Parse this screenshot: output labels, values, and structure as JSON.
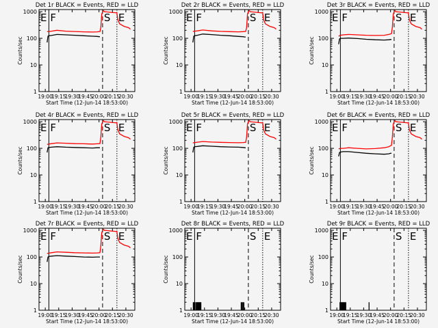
{
  "figure": {
    "xlabel": "Start Time (12-Jun-14 18:53:00)",
    "ylabel": "Counts/sec",
    "x_ticks": [
      "19:00",
      "19:15",
      "19:30",
      "19:45",
      "20:00",
      "20:15",
      "20:30"
    ],
    "x_tick_minutes": [
      7,
      22,
      37,
      52,
      67,
      82,
      97
    ],
    "y_ticks": [
      "1",
      "10",
      "100",
      "1000"
    ],
    "y_tick_values": [
      1,
      10,
      100,
      1000
    ],
    "xlim_minutes": [
      0,
      107
    ],
    "ylim": [
      1,
      1200
    ],
    "y_scale": "log",
    "markers": [
      {
        "label": "E",
        "minute": 0,
        "style": "solid"
      },
      {
        "label": "F",
        "minute": 11,
        "style": "solid"
      },
      {
        "label": "S",
        "minute": 71,
        "style": "dashed"
      },
      {
        "label": "E",
        "minute": 87,
        "style": "dotted"
      }
    ],
    "colors": {
      "events": "#000000",
      "lld": "#ff0000",
      "background": "#f4f4f4"
    }
  },
  "chart_data": [
    {
      "type": "line",
      "title": "Det 1r BLACK = Events, RED = LLD",
      "x_label": "Start Time (12-Jun-14 18:53:00)",
      "y_label": "Counts/sec",
      "series": [
        {
          "name": "Events",
          "color": "#000000",
          "x": [
            9,
            10,
            11,
            14,
            20,
            30,
            40,
            50,
            60,
            65,
            67,
            68
          ],
          "y": [
            70,
            120,
            125,
            128,
            140,
            135,
            130,
            125,
            120,
            118,
            115,
            115
          ]
        },
        {
          "name": "LLD",
          "color": "#ff0000",
          "x": [
            9,
            11,
            14,
            20,
            30,
            40,
            50,
            60,
            65,
            68,
            69,
            70,
            71,
            72,
            73,
            87,
            88,
            90,
            95,
            100,
            102
          ],
          "y": [
            180,
            180,
            185,
            200,
            185,
            180,
            175,
            172,
            175,
            180,
            250,
            800,
            1000,
            1100,
            1000,
            900,
            500,
            350,
            280,
            250,
            220
          ]
        }
      ]
    },
    {
      "type": "line",
      "title": "Det 2r BLACK = Events, RED = LLD",
      "x_label": "Start Time (12-Jun-14 18:53:00)",
      "y_label": "Counts/sec",
      "series": [
        {
          "name": "Events",
          "color": "#000000",
          "x": [
            9,
            10,
            11,
            14,
            20,
            30,
            40,
            50,
            60,
            65,
            67,
            68
          ],
          "y": [
            70,
            120,
            125,
            130,
            145,
            138,
            130,
            125,
            118,
            115,
            112,
            112
          ]
        },
        {
          "name": "LLD",
          "color": "#ff0000",
          "x": [
            9,
            11,
            14,
            20,
            30,
            40,
            50,
            60,
            65,
            68,
            69,
            70,
            71,
            72,
            73,
            87,
            88,
            90,
            95,
            100,
            102
          ],
          "y": [
            180,
            185,
            190,
            205,
            190,
            182,
            178,
            175,
            178,
            182,
            250,
            800,
            1000,
            1100,
            1000,
            900,
            500,
            350,
            280,
            250,
            220
          ]
        }
      ]
    },
    {
      "type": "line",
      "title": "Det 3r BLACK = Events, RED = LLD",
      "x_label": "Start Time (12-Jun-14 18:53:00)",
      "y_label": "Counts/sec",
      "series": [
        {
          "name": "Events",
          "color": "#000000",
          "x": [
            9,
            10,
            11,
            14,
            20,
            30,
            40,
            50,
            60,
            65,
            67,
            68
          ],
          "y": [
            60,
            95,
            100,
            100,
            102,
            98,
            92,
            88,
            86,
            88,
            90,
            90
          ]
        },
        {
          "name": "LLD",
          "color": "#ff0000",
          "x": [
            9,
            11,
            14,
            20,
            30,
            40,
            50,
            60,
            65,
            68,
            69,
            70,
            71,
            72,
            73,
            87,
            88,
            90,
            95,
            100,
            102
          ],
          "y": [
            120,
            130,
            135,
            140,
            135,
            130,
            128,
            130,
            140,
            150,
            260,
            800,
            1000,
            1100,
            1000,
            900,
            500,
            350,
            280,
            250,
            220
          ]
        }
      ]
    },
    {
      "type": "line",
      "title": "Det 4r BLACK = Events, RED = LLD",
      "x_label": "Start Time (12-Jun-14 18:53:00)",
      "y_label": "Counts/sec",
      "series": [
        {
          "name": "Events",
          "color": "#000000",
          "x": [
            9,
            10,
            11,
            14,
            20,
            30,
            40,
            50,
            60,
            65,
            67,
            68
          ],
          "y": [
            70,
            105,
            108,
            110,
            115,
            110,
            108,
            105,
            103,
            105,
            105,
            105
          ]
        },
        {
          "name": "LLD",
          "color": "#ff0000",
          "x": [
            9,
            11,
            14,
            20,
            30,
            40,
            50,
            60,
            65,
            68,
            69,
            70,
            71,
            72,
            73,
            87,
            88,
            90,
            95,
            100,
            102
          ],
          "y": [
            140,
            145,
            150,
            160,
            155,
            150,
            148,
            145,
            148,
            150,
            260,
            800,
            1000,
            1100,
            1000,
            900,
            500,
            350,
            280,
            250,
            220
          ]
        }
      ]
    },
    {
      "type": "line",
      "title": "Det 5r BLACK = Events, RED = LLD",
      "x_label": "Start Time (12-Jun-14 18:53:00)",
      "y_label": "Counts/sec",
      "series": [
        {
          "name": "Events",
          "color": "#000000",
          "x": [
            9,
            10,
            11,
            14,
            20,
            30,
            40,
            50,
            60,
            65,
            67,
            68
          ],
          "y": [
            70,
            110,
            115,
            118,
            125,
            120,
            115,
            112,
            110,
            108,
            105,
            105
          ]
        },
        {
          "name": "LLD",
          "color": "#ff0000",
          "x": [
            9,
            11,
            14,
            20,
            30,
            40,
            50,
            60,
            65,
            68,
            69,
            70,
            71,
            72,
            73,
            87,
            88,
            90,
            95,
            100,
            102
          ],
          "y": [
            160,
            165,
            170,
            180,
            172,
            168,
            165,
            162,
            165,
            168,
            260,
            800,
            1000,
            1100,
            1000,
            900,
            500,
            350,
            280,
            250,
            220
          ]
        }
      ]
    },
    {
      "type": "line",
      "title": "Det 6r BLACK = Events, RED = LLD",
      "x_label": "Start Time (12-Jun-14 18:53:00)",
      "y_label": "Counts/sec",
      "series": [
        {
          "name": "Events",
          "color": "#000000",
          "x": [
            9,
            10,
            11,
            14,
            20,
            30,
            40,
            50,
            60,
            65,
            67,
            68
          ],
          "y": [
            50,
            70,
            72,
            75,
            75,
            70,
            65,
            62,
            60,
            62,
            65,
            65
          ]
        },
        {
          "name": "LLD",
          "color": "#ff0000",
          "x": [
            9,
            11,
            14,
            20,
            30,
            40,
            50,
            60,
            65,
            68,
            69,
            70,
            71,
            72,
            73,
            87,
            88,
            90,
            95,
            100,
            102
          ],
          "y": [
            95,
            100,
            100,
            105,
            100,
            95,
            98,
            105,
            115,
            130,
            260,
            800,
            1000,
            1100,
            1000,
            900,
            500,
            350,
            280,
            250,
            220
          ]
        }
      ]
    },
    {
      "type": "line",
      "title": "Det 7r BLACK = Events, RED = LLD",
      "x_label": "Start Time (12-Jun-14 18:53:00)",
      "y_label": "Counts/sec",
      "series": [
        {
          "name": "Events",
          "color": "#000000",
          "x": [
            9,
            10,
            11,
            14,
            20,
            30,
            40,
            50,
            60,
            65,
            67,
            68
          ],
          "y": [
            65,
            100,
            105,
            108,
            112,
            108,
            104,
            100,
            98,
            100,
            100,
            100
          ]
        },
        {
          "name": "LLD",
          "color": "#ff0000",
          "x": [
            9,
            11,
            14,
            20,
            30,
            40,
            50,
            60,
            65,
            68,
            69,
            70,
            71,
            72,
            73,
            87,
            88,
            90,
            95,
            100,
            102
          ],
          "y": [
            135,
            140,
            145,
            155,
            150,
            145,
            142,
            140,
            142,
            145,
            260,
            800,
            1000,
            1100,
            1000,
            900,
            500,
            350,
            280,
            250,
            220
          ]
        }
      ]
    },
    {
      "type": "bar",
      "title": "Det 8r BLACK = Events, RED = LLD",
      "x_label": "Start Time (12-Jun-14 18:53:00)",
      "y_label": "Counts/sec",
      "series": [
        {
          "name": "Events",
          "color": "#000000",
          "x": [
            9.5,
            10.2,
            11.5,
            12.8,
            13.5,
            14.2,
            15.0,
            15.7,
            16.5,
            17.2,
            18.0,
            63.0,
            64.0,
            65.0,
            66.0
          ],
          "y": [
            2,
            2,
            2,
            2,
            2,
            2,
            2,
            2,
            2,
            2,
            2,
            2,
            2,
            2,
            2
          ]
        }
      ]
    },
    {
      "type": "bar",
      "title": "Det 9r BLACK = Events, RED = LLD",
      "x_label": "Start Time (12-Jun-14 18:53:00)",
      "y_label": "Counts/sec",
      "series": [
        {
          "name": "Events",
          "color": "#000000",
          "x": [
            10.5,
            11.3,
            12.2,
            13.0,
            13.8,
            14.6,
            15.4,
            16.2,
            17.0,
            43.0
          ],
          "y": [
            2,
            2,
            2,
            2,
            2,
            2,
            2,
            2,
            2,
            2
          ]
        }
      ]
    }
  ]
}
